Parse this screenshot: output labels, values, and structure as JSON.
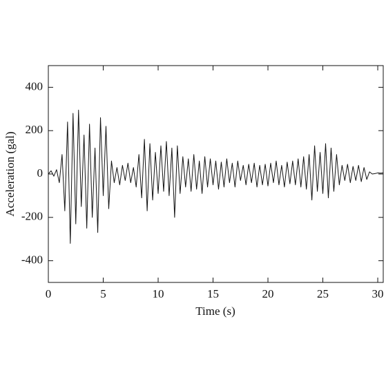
{
  "chart_data": {
    "type": "line",
    "xlabel": "Time (s)",
    "ylabel": "Acceleration (gal)",
    "x": [
      0,
      0.25,
      0.5,
      0.75,
      1,
      1.25,
      1.5,
      1.75,
      2,
      2.25,
      2.5,
      2.75,
      3,
      3.25,
      3.5,
      3.75,
      4,
      4.25,
      4.5,
      4.75,
      5,
      5.25,
      5.5,
      5.75,
      6,
      6.25,
      6.5,
      6.75,
      7,
      7.25,
      7.5,
      7.75,
      8,
      8.25,
      8.5,
      8.75,
      9,
      9.25,
      9.5,
      9.75,
      10,
      10.25,
      10.5,
      10.75,
      11,
      11.25,
      11.5,
      11.75,
      12,
      12.25,
      12.5,
      12.75,
      13,
      13.25,
      13.5,
      13.75,
      14,
      14.25,
      14.5,
      14.75,
      15,
      15.25,
      15.5,
      15.75,
      16,
      16.25,
      16.5,
      16.75,
      17,
      17.25,
      17.5,
      17.75,
      18,
      18.25,
      18.5,
      18.75,
      19,
      19.25,
      19.5,
      19.75,
      20,
      20.25,
      20.5,
      20.75,
      21,
      21.25,
      21.5,
      21.75,
      22,
      22.25,
      22.5,
      22.75,
      23,
      23.25,
      23.5,
      23.75,
      24,
      24.25,
      24.5,
      24.75,
      25,
      25.25,
      25.5,
      25.75,
      26,
      26.25,
      26.5,
      26.75,
      27,
      27.25,
      27.5,
      27.75,
      28,
      28.25,
      28.5,
      28.75,
      29,
      29.25,
      29.5,
      29.75,
      30,
      30.25,
      30.5
    ],
    "series": [
      {
        "name": "Acceleration",
        "color": "#111111",
        "values": [
          0,
          15,
          -10,
          20,
          -40,
          90,
          -170,
          240,
          -320,
          280,
          -230,
          295,
          -150,
          180,
          -250,
          230,
          -200,
          120,
          -270,
          260,
          -100,
          220,
          -160,
          60,
          -40,
          30,
          -50,
          40,
          -30,
          50,
          -40,
          30,
          -60,
          90,
          -110,
          160,
          -170,
          140,
          -120,
          100,
          -90,
          130,
          -80,
          150,
          -100,
          120,
          -200,
          130,
          -90,
          80,
          -60,
          70,
          -80,
          90,
          -70,
          60,
          -90,
          80,
          -60,
          70,
          -50,
          60,
          -70,
          55,
          -60,
          70,
          -40,
          50,
          -60,
          60,
          -30,
          40,
          -50,
          45,
          -40,
          50,
          -60,
          40,
          -50,
          45,
          -55,
          50,
          -40,
          60,
          -50,
          40,
          -60,
          55,
          -45,
          60,
          -50,
          70,
          -60,
          80,
          -70,
          90,
          -120,
          130,
          -80,
          100,
          -90,
          140,
          -110,
          120,
          -80,
          90,
          -50,
          40,
          -30,
          45,
          -40,
          35,
          -30,
          40,
          -35,
          30,
          -25,
          10,
          0,
          2,
          5,
          4,
          5
        ]
      }
    ],
    "xlim": [
      0,
      30.5
    ],
    "ylim": [
      -500,
      500
    ],
    "xticks": [
      0,
      5,
      10,
      15,
      20,
      25,
      30
    ],
    "yticks": [
      -400,
      -200,
      0,
      200,
      400
    ]
  }
}
